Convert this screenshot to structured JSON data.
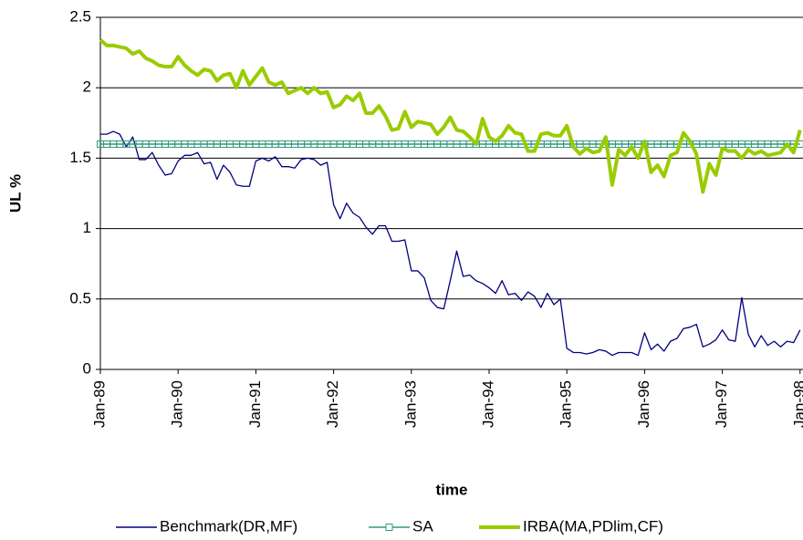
{
  "chart_data": {
    "type": "line",
    "y_label": "UL %",
    "x_label": "time",
    "categories": [
      "Jan-89",
      null,
      null,
      null,
      null,
      null,
      null,
      null,
      null,
      null,
      null,
      null,
      "Jan-90",
      null,
      null,
      null,
      null,
      null,
      null,
      null,
      null,
      null,
      null,
      null,
      "Jan-91",
      null,
      null,
      null,
      null,
      null,
      null,
      null,
      null,
      null,
      null,
      null,
      "Jan-92",
      null,
      null,
      null,
      null,
      null,
      null,
      null,
      null,
      null,
      null,
      null,
      "Jan-93",
      null,
      null,
      null,
      null,
      null,
      null,
      null,
      null,
      null,
      null,
      null,
      "Jan-94",
      null,
      null,
      null,
      null,
      null,
      null,
      null,
      null,
      null,
      null,
      null,
      "Jan-95",
      null,
      null,
      null,
      null,
      null,
      null,
      null,
      null,
      null,
      null,
      null,
      "Jan-96",
      null,
      null,
      null,
      null,
      null,
      null,
      null,
      null,
      null,
      null,
      null,
      "Jan-97",
      null,
      null,
      null,
      null,
      null,
      null,
      null,
      null,
      null,
      null,
      null,
      "Jan-98"
    ],
    "series": [
      {
        "name": "Benchmark(DR,MF)",
        "color": "#000080",
        "values": [
          1.67,
          1.67,
          1.69,
          1.67,
          1.58,
          1.65,
          1.49,
          1.49,
          1.54,
          1.45,
          1.38,
          1.39,
          1.48,
          1.52,
          1.52,
          1.54,
          1.46,
          1.47,
          1.35,
          1.45,
          1.4,
          1.31,
          1.3,
          1.3,
          1.48,
          1.5,
          1.48,
          1.51,
          1.44,
          1.44,
          1.43,
          1.49,
          1.5,
          1.49,
          1.45,
          1.47,
          1.17,
          1.07,
          1.18,
          1.11,
          1.08,
          1.01,
          0.96,
          1.02,
          1.02,
          0.91,
          0.91,
          0.92,
          0.7,
          0.7,
          0.65,
          0.49,
          0.44,
          0.43,
          0.63,
          0.84,
          0.66,
          0.67,
          0.63,
          0.61,
          0.58,
          0.54,
          0.63,
          0.53,
          0.54,
          0.49,
          0.55,
          0.52,
          0.44,
          0.54,
          0.46,
          0.5,
          0.15,
          0.12,
          0.12,
          0.11,
          0.12,
          0.14,
          0.13,
          0.1,
          0.12,
          0.12,
          0.12,
          0.1,
          0.26,
          0.14,
          0.18,
          0.13,
          0.2,
          0.22,
          0.29,
          0.3,
          0.32,
          0.16,
          0.18,
          0.21,
          0.28,
          0.21,
          0.2,
          0.51,
          0.25,
          0.16,
          0.24,
          0.17,
          0.2,
          0.16,
          0.2,
          0.19,
          0.28
        ]
      },
      {
        "name": "SA",
        "color": "#339980",
        "marker": "square",
        "values": [
          1.6,
          1.6,
          1.6,
          1.6,
          1.6,
          1.6,
          1.6,
          1.6,
          1.6,
          1.6,
          1.6,
          1.6,
          1.6,
          1.6,
          1.6,
          1.6,
          1.6,
          1.6,
          1.6,
          1.6,
          1.6,
          1.6,
          1.6,
          1.6,
          1.6,
          1.6,
          1.6,
          1.6,
          1.6,
          1.6,
          1.6,
          1.6,
          1.6,
          1.6,
          1.6,
          1.6,
          1.6,
          1.6,
          1.6,
          1.6,
          1.6,
          1.6,
          1.6,
          1.6,
          1.6,
          1.6,
          1.6,
          1.6,
          1.6,
          1.6,
          1.6,
          1.6,
          1.6,
          1.6,
          1.6,
          1.6,
          1.6,
          1.6,
          1.6,
          1.6,
          1.6,
          1.6,
          1.6,
          1.6,
          1.6,
          1.6,
          1.6,
          1.6,
          1.6,
          1.6,
          1.6,
          1.6,
          1.6,
          1.6,
          1.6,
          1.6,
          1.6,
          1.6,
          1.6,
          1.6,
          1.6,
          1.6,
          1.6,
          1.6,
          1.6,
          1.6,
          1.6,
          1.6,
          1.6,
          1.6,
          1.6,
          1.6,
          1.6,
          1.6,
          1.6,
          1.6,
          1.6,
          1.6,
          1.6,
          1.6,
          1.6,
          1.6,
          1.6,
          1.6,
          1.6,
          1.6,
          1.6,
          1.6,
          1.6
        ]
      },
      {
        "name": "IRBA(MA,PDlim,CF)",
        "color": "#99cc00",
        "values": [
          2.34,
          2.3,
          2.3,
          2.29,
          2.28,
          2.24,
          2.26,
          2.21,
          2.19,
          2.16,
          2.15,
          2.15,
          2.22,
          2.16,
          2.12,
          2.09,
          2.13,
          2.12,
          2.05,
          2.09,
          2.1,
          2.0,
          2.12,
          2.02,
          2.08,
          2.14,
          2.04,
          2.02,
          2.04,
          1.96,
          1.98,
          2.0,
          1.96,
          2.0,
          1.96,
          1.97,
          1.86,
          1.88,
          1.94,
          1.91,
          1.96,
          1.82,
          1.82,
          1.87,
          1.8,
          1.7,
          1.71,
          1.83,
          1.72,
          1.76,
          1.75,
          1.74,
          1.67,
          1.72,
          1.79,
          1.7,
          1.69,
          1.65,
          1.6,
          1.78,
          1.65,
          1.62,
          1.66,
          1.73,
          1.68,
          1.67,
          1.55,
          1.55,
          1.67,
          1.68,
          1.66,
          1.66,
          1.73,
          1.58,
          1.53,
          1.57,
          1.54,
          1.55,
          1.65,
          1.31,
          1.56,
          1.52,
          1.58,
          1.5,
          1.62,
          1.4,
          1.45,
          1.37,
          1.52,
          1.54,
          1.68,
          1.62,
          1.53,
          1.26,
          1.46,
          1.38,
          1.57,
          1.55,
          1.55,
          1.5,
          1.56,
          1.53,
          1.55,
          1.52,
          1.53,
          1.54,
          1.6,
          1.54,
          1.7
        ]
      }
    ],
    "ylim": [
      0,
      2.5
    ],
    "yticks": [
      0,
      0.5,
      1,
      1.5,
      2,
      2.5
    ],
    "grid": true,
    "legend": "bottom"
  }
}
